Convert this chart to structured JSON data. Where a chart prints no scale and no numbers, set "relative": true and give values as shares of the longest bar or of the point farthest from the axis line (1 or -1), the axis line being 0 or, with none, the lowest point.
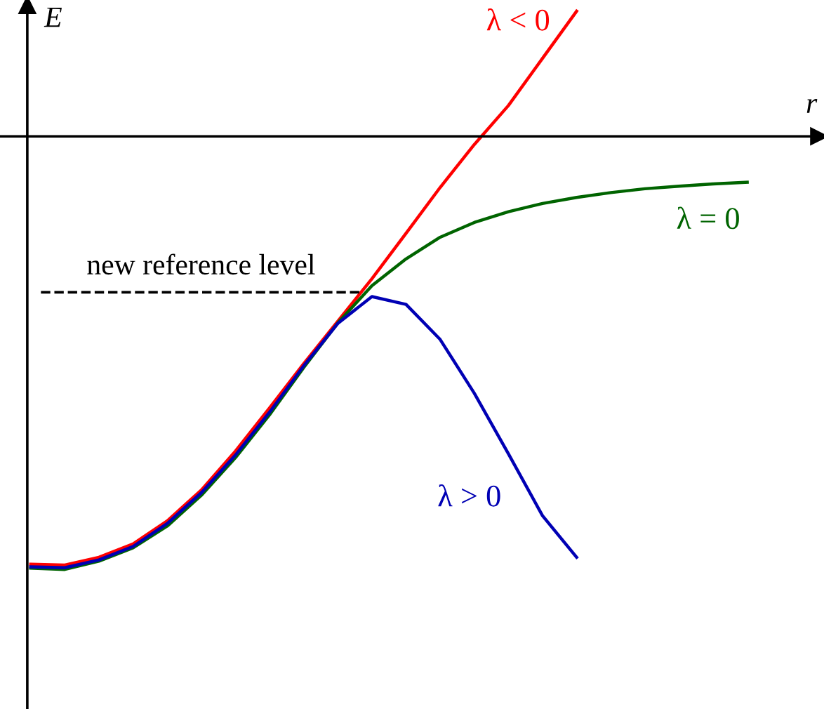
{
  "chart_data": {
    "type": "line",
    "relative": true,
    "xlabel": "r",
    "ylabel": "E",
    "legend": false,
    "categories": [
      null,
      null,
      null,
      null,
      null,
      null,
      null,
      null,
      null,
      null,
      null,
      null,
      null,
      null,
      null,
      null,
      null,
      null,
      null,
      null,
      null,
      null
    ],
    "series": [
      {
        "name": "λ < 0",
        "color": "#ff0000",
        "values": [
          -0.988,
          -0.99,
          -0.972,
          -0.941,
          -0.888,
          -0.817,
          -0.727,
          -0.627,
          -0.525,
          -0.427,
          -0.329,
          -0.224,
          -0.118,
          -0.019,
          0.071,
          0.18,
          0.289,
          null,
          null,
          null,
          null,
          null
        ]
      },
      {
        "name": "λ = 0",
        "color": "#006400",
        "values": [
          -0.997,
          -1.0,
          -0.981,
          -0.95,
          -0.9,
          -0.829,
          -0.742,
          -0.643,
          -0.534,
          -0.431,
          -0.345,
          -0.283,
          -0.233,
          -0.199,
          -0.174,
          -0.155,
          -0.141,
          -0.13,
          -0.121,
          -0.115,
          -0.11,
          -0.106
        ]
      },
      {
        "name": "λ > 0",
        "color": "#0000b4",
        "values": [
          -0.994,
          -0.996,
          -0.978,
          -0.947,
          -0.894,
          -0.823,
          -0.736,
          -0.637,
          -0.53,
          -0.432,
          -0.37,
          -0.388,
          -0.469,
          -0.593,
          -0.733,
          -0.876,
          -0.972,
          null,
          null,
          null,
          null,
          null
        ]
      }
    ],
    "ref_lines": [
      {
        "axis": "y",
        "value": -0.36,
        "label": "new reference level",
        "color": "#000000",
        "line_style": "dashed"
      }
    ]
  }
}
